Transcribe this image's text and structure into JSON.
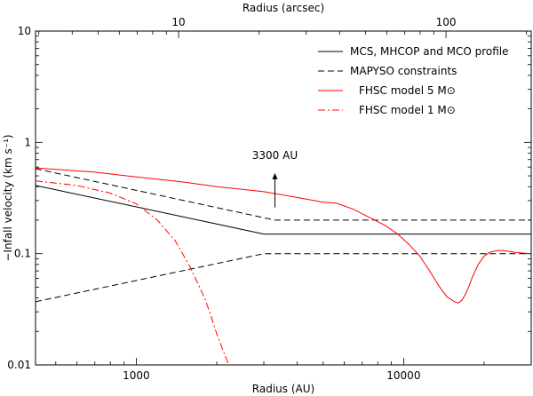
{
  "chart_data": {
    "type": "line",
    "title": "",
    "xlabel": "Radius (AU)",
    "ylabel": "−Infall velocity (km s⁻¹)",
    "top_xlabel": "Radius (arcsec)",
    "xscale": "log",
    "yscale": "log",
    "xlim": [
      420,
      30000
    ],
    "ylim": [
      0.01,
      10
    ],
    "x_ticks": [
      {
        "value": 1000,
        "label": "1000"
      },
      {
        "value": 10000,
        "label": "10000"
      }
    ],
    "y_ticks": [
      {
        "value": 0.01,
        "label": "0.01"
      },
      {
        "value": 0.1,
        "label": "0.1"
      },
      {
        "value": 1,
        "label": "1"
      },
      {
        "value": 10,
        "label": "10"
      }
    ],
    "top_ticks": [
      {
        "value": 1440,
        "label": "10"
      },
      {
        "value": 14400,
        "label": "100"
      }
    ],
    "legend_position": "top-right",
    "series": [
      {
        "name": "MCS, MHCOP and MCO profile",
        "color": "#000000",
        "dash": "solid",
        "x": [
          420,
          3000,
          30000
        ],
        "y": [
          0.41,
          0.15,
          0.15
        ]
      },
      {
        "name": "MAPYSO constraints",
        "color": "#000000",
        "dash": "dashed",
        "legend": true,
        "x": [
          420,
          3300,
          30000
        ],
        "y": [
          0.58,
          0.2,
          0.2
        ]
      },
      {
        "name": "MAPYSO constraints (lower bound)",
        "color": "#000000",
        "dash": "dashed",
        "legend": false,
        "x": [
          420,
          3000,
          30000
        ],
        "y": [
          0.037,
          0.1,
          0.1
        ]
      },
      {
        "name": "FHSC model 5 M⊙",
        "color": "#ff0000",
        "dash": "solid",
        "x": [
          420,
          700,
          1000,
          1500,
          2000,
          3000,
          4000,
          5000,
          5600,
          6500,
          7500,
          8500,
          9500,
          10500,
          11500,
          12500,
          13500,
          14500,
          15500,
          16000,
          16500,
          17000,
          17500,
          18000,
          19000,
          20000,
          21000,
          22500,
          24000,
          26000,
          28000,
          30000
        ],
        "y": [
          0.59,
          0.54,
          0.49,
          0.44,
          0.4,
          0.36,
          0.32,
          0.29,
          0.285,
          0.25,
          0.21,
          0.18,
          0.15,
          0.12,
          0.095,
          0.07,
          0.052,
          0.041,
          0.037,
          0.036,
          0.038,
          0.043,
          0.05,
          0.06,
          0.08,
          0.095,
          0.103,
          0.107,
          0.106,
          0.103,
          0.101,
          0.1
        ]
      },
      {
        "name": "FHSC model 1 M⊙",
        "color": "#ff0000",
        "dash": "dashdot",
        "x": [
          420,
          600,
          800,
          1000,
          1200,
          1400,
          1600,
          1800,
          1900,
          2000,
          2100,
          2150,
          2200,
          2230
        ],
        "y": [
          0.45,
          0.41,
          0.35,
          0.28,
          0.2,
          0.13,
          0.074,
          0.04,
          0.028,
          0.019,
          0.014,
          0.012,
          0.0105,
          0.01
        ]
      }
    ],
    "annotations": [
      {
        "text": "3300 AU",
        "x": 3300,
        "arrow_from": 0.26,
        "arrow_to": 0.53
      }
    ]
  }
}
